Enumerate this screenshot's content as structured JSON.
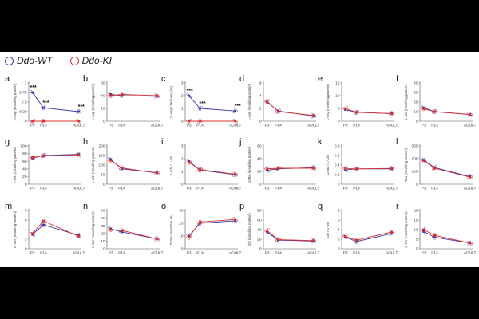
{
  "legend": {
    "wt_label": "Ddo-WT",
    "ki_label": "Ddo-KI",
    "wt_color": "#3a3aa6",
    "ki_color": "#d9302f"
  },
  "chart_data": [
    {
      "type": "line",
      "panel": "a",
      "ylabel": "D-Asp (nmol/mg protein)",
      "categories": [
        "P3",
        "P14",
        "ADULT"
      ],
      "series": [
        {
          "name": "Ddo-WT",
          "values": [
            0.75,
            0.35,
            0.25
          ]
        },
        {
          "name": "Ddo-KI",
          "values": [
            0.0,
            0.0,
            0.0
          ]
        }
      ],
      "ylim": [
        0,
        1
      ],
      "yticks": [
        0,
        0.25,
        0.5,
        0.75,
        1
      ],
      "significance": [
        "***",
        "***",
        "***"
      ]
    },
    {
      "type": "line",
      "panel": "b",
      "ylabel": "L-Asp (nmol/mg protein)",
      "categories": [
        "P3",
        "P14",
        "ADULT"
      ],
      "series": [
        {
          "name": "Ddo-WT",
          "values": [
            42,
            40,
            39
          ]
        },
        {
          "name": "Ddo-KI",
          "values": [
            40,
            42,
            40
          ]
        }
      ],
      "ylim": [
        0,
        60
      ],
      "yticks": [
        0,
        20,
        40,
        60
      ]
    },
    {
      "type": "line",
      "panel": "c",
      "ylabel": "D-Asp / total Asp (%)",
      "categories": [
        "P3",
        "P14",
        "ADULT"
      ],
      "series": [
        {
          "name": "Ddo-WT",
          "values": [
            2.0,
            1.0,
            0.8
          ]
        },
        {
          "name": "Ddo-KI",
          "values": [
            0.0,
            0.0,
            0.0
          ]
        }
      ],
      "ylim": [
        0,
        3
      ],
      "yticks": [
        0,
        1,
        2,
        3
      ],
      "significance": [
        "***",
        "***",
        "***"
      ]
    },
    {
      "type": "line",
      "panel": "d",
      "ylabel": "L-Asn (nmol/mg protein)",
      "categories": [
        "P3",
        "P14",
        "ADULT"
      ],
      "series": [
        {
          "name": "Ddo-WT",
          "values": [
            3.0,
            1.6,
            0.8
          ]
        },
        {
          "name": "Ddo-KI",
          "values": [
            3.1,
            1.5,
            0.9
          ]
        }
      ],
      "ylim": [
        0,
        6
      ],
      "yticks": [
        0,
        2,
        4,
        6
      ]
    },
    {
      "type": "line",
      "panel": "e",
      "ylabel": "L-Arg (nmol/mg protein)",
      "categories": [
        "P3",
        "P14",
        "ADULT"
      ],
      "series": [
        {
          "name": "Ddo-WT",
          "values": [
            4.5,
            3.5,
            3.0
          ]
        },
        {
          "name": "Ddo-KI",
          "values": [
            5.0,
            3.5,
            3.0
          ]
        }
      ],
      "ylim": [
        0,
        15
      ],
      "yticks": [
        0,
        5,
        10,
        15
      ]
    },
    {
      "type": "line",
      "panel": "f",
      "ylabel": "L-Ala (nmol/mg protein)",
      "categories": [
        "P3",
        "P14",
        "ADULT"
      ],
      "series": [
        {
          "name": "Ddo-WT",
          "values": [
            14,
            10,
            7
          ]
        },
        {
          "name": "Ddo-KI",
          "values": [
            13,
            10,
            7
          ]
        }
      ],
      "ylim": [
        0,
        40
      ],
      "yticks": [
        0,
        10,
        20,
        30,
        40
      ]
    },
    {
      "type": "line",
      "panel": "g",
      "ylabel": "L-Glu (nmol/mg protein)",
      "categories": [
        "P3",
        "P14",
        "ADULT"
      ],
      "series": [
        {
          "name": "Ddo-WT",
          "values": [
            68,
            75,
            78
          ]
        },
        {
          "name": "Ddo-KI",
          "values": [
            70,
            74,
            76
          ]
        }
      ],
      "ylim": [
        0,
        100
      ],
      "yticks": [
        0,
        20,
        40,
        60,
        80,
        100
      ]
    },
    {
      "type": "line",
      "panel": "h",
      "ylabel": "L-Gln (nmol/mg protein)",
      "categories": [
        "P3",
        "P14",
        "ADULT"
      ],
      "series": [
        {
          "name": "Ddo-WT",
          "values": [
            130,
            80,
            60
          ]
        },
        {
          "name": "Ddo-KI",
          "values": [
            125,
            85,
            58
          ]
        }
      ],
      "ylim": [
        0,
        200
      ],
      "yticks": [
        0,
        50,
        100,
        150,
        200
      ]
    },
    {
      "type": "line",
      "panel": "i",
      "ylabel": "L-Gln / L-Glu",
      "categories": [
        "P3",
        "P14",
        "ADULT"
      ],
      "series": [
        {
          "name": "Ddo-WT",
          "values": [
            1.8,
            1.1,
            0.75
          ]
        },
        {
          "name": "Ddo-KI",
          "values": [
            1.7,
            1.15,
            0.78
          ]
        }
      ],
      "ylim": [
        0,
        3
      ],
      "yticks": [
        0,
        1,
        2,
        3
      ]
    },
    {
      "type": "line",
      "panel": "j",
      "ylabel": "GABA (nmol/mg protein)",
      "categories": [
        "P3",
        "P14",
        "ADULT"
      ],
      "series": [
        {
          "name": "Ddo-WT",
          "values": [
            22,
            24,
            26
          ]
        },
        {
          "name": "Ddo-KI",
          "values": [
            24,
            25,
            25
          ]
        }
      ],
      "ylim": [
        0,
        60
      ],
      "yticks": [
        0,
        20,
        40,
        60
      ]
    },
    {
      "type": "line",
      "panel": "k",
      "ylabel": "GABA / L-Glu",
      "categories": [
        "P3",
        "P14",
        "ADULT"
      ],
      "series": [
        {
          "name": "Ddo-WT",
          "values": [
            0.3,
            0.32,
            0.32
          ]
        },
        {
          "name": "Ddo-KI",
          "values": [
            0.33,
            0.32,
            0.33
          ]
        }
      ],
      "ylim": [
        0,
        0.8
      ],
      "yticks": [
        0,
        0.2,
        0.4,
        0.6,
        0.8
      ]
    },
    {
      "type": "line",
      "panel": "l",
      "ylabel": "Tau (nmol/mg protein)",
      "categories": [
        "P3",
        "P14",
        "ADULT"
      ],
      "series": [
        {
          "name": "Ddo-WT",
          "values": [
            190,
            130,
            60
          ]
        },
        {
          "name": "Ddo-KI",
          "values": [
            185,
            125,
            55
          ]
        }
      ],
      "ylim": [
        0,
        300
      ],
      "yticks": [
        0,
        100,
        200,
        300
      ]
    },
    {
      "type": "line",
      "panel": "m",
      "ylabel": "D-Ser (nmol/mg protein)",
      "categories": [
        "P3",
        "P14",
        "ADULT"
      ],
      "series": [
        {
          "name": "Ddo-WT",
          "values": [
            3,
            5,
            2.8
          ]
        },
        {
          "name": "Ddo-KI",
          "values": [
            3.2,
            5.8,
            2.6
          ]
        }
      ],
      "ylim": [
        0,
        8
      ],
      "yticks": [
        0,
        2,
        4,
        6,
        8
      ]
    },
    {
      "type": "line",
      "panel": "n",
      "ylabel": "L-Ser (nmol/mg protein)",
      "categories": [
        "P3",
        "P14",
        "ADULT"
      ],
      "series": [
        {
          "name": "Ddo-WT",
          "values": [
            26,
            22,
            13
          ]
        },
        {
          "name": "Ddo-KI",
          "values": [
            25,
            24,
            13
          ]
        }
      ],
      "ylim": [
        0,
        50
      ],
      "yticks": [
        0,
        10,
        20,
        30,
        40,
        50
      ]
    },
    {
      "type": "line",
      "panel": "o",
      "ylabel": "D-Ser / total Ser (%)",
      "categories": [
        "P3",
        "P14",
        "ADULT"
      ],
      "series": [
        {
          "name": "Ddo-WT",
          "values": [
            10,
            20,
            22
          ]
        },
        {
          "name": "Ddo-KI",
          "values": [
            9,
            21,
            23
          ]
        }
      ],
      "ylim": [
        0,
        30
      ],
      "yticks": [
        0,
        10,
        20,
        30
      ]
    },
    {
      "type": "line",
      "panel": "p",
      "ylabel": "Gly (nmol/mg protein)",
      "categories": [
        "P3",
        "P14",
        "ADULT"
      ],
      "series": [
        {
          "name": "Ddo-WT",
          "values": [
            35,
            18,
            16
          ]
        },
        {
          "name": "Ddo-KI",
          "values": [
            38,
            19,
            17
          ]
        }
      ],
      "ylim": [
        0,
        80
      ],
      "yticks": [
        0,
        20,
        40,
        60,
        80
      ]
    },
    {
      "type": "line",
      "panel": "q",
      "ylabel": "Gly / L-Ser",
      "categories": [
        "P3",
        "P14",
        "ADULT"
      ],
      "series": [
        {
          "name": "Ddo-WT",
          "values": [
            2.5,
            1.5,
            3.2
          ]
        },
        {
          "name": "Ddo-KI",
          "values": [
            2.6,
            1.8,
            3.5
          ]
        }
      ],
      "ylim": [
        0,
        8
      ],
      "yticks": [
        0,
        2,
        4,
        6,
        8
      ]
    },
    {
      "type": "line",
      "panel": "r",
      "ylabel": "L-Thr (nmol/mg protein)",
      "categories": [
        "P3",
        "P14",
        "ADULT"
      ],
      "series": [
        {
          "name": "Ddo-WT",
          "values": [
            9,
            6,
            3
          ]
        },
        {
          "name": "Ddo-KI",
          "values": [
            10,
            7,
            3
          ]
        }
      ],
      "ylim": [
        0,
        20
      ],
      "yticks": [
        0,
        5,
        10,
        15,
        20
      ]
    }
  ]
}
